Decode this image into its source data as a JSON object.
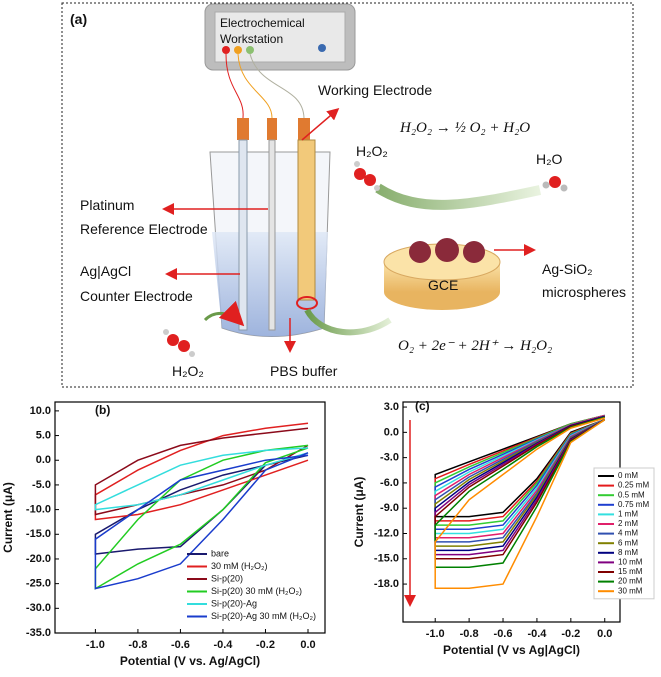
{
  "panel_a": {
    "panel_label": "(a)",
    "workstation": [
      "Electrochemical",
      "Workstation"
    ],
    "working_electrode": "Working Electrode",
    "equation_top": "H₂O₂ → ½ O₂ + H₂O",
    "h2o2_top": "H₂O₂",
    "h2o": "H₂O",
    "platinum": "Platinum",
    "reference_electrode": "Reference Electrode",
    "ag_agcl": "Ag|AgCl",
    "counter_electrode": "Counter Electrode",
    "ag_sio2": "Ag-SiO₂",
    "microspheres": "microspheres",
    "gce": "GCE",
    "equation_bottom": "O₂ + 2e⁻ + 2H⁺ → H₂O₂",
    "h2o2_bottom": "H₂O₂",
    "pbs_buffer": "PBS buffer"
  },
  "chart_data": [
    {
      "type": "line",
      "panel_label": "(b)",
      "xlabel": "Potential (V vs. Ag/AgCl)",
      "ylabel": "Current (μA)",
      "x": [
        0,
        -0.2,
        -0.4,
        -0.6,
        -0.8,
        -1.0,
        -1.0,
        -0.8,
        -0.6,
        -0.4,
        -0.2,
        0
      ],
      "xlim": [
        -1.19,
        0.08
      ],
      "ylim": [
        -35,
        11.8
      ],
      "xticks": [
        {
          "value": -1.0,
          "label": "-1.0"
        },
        -0.8,
        -0.6,
        -0.4,
        -0.2,
        {
          "value": 0,
          "label": "0.0"
        }
      ],
      "yticks": [
        {
          "value": 10,
          "label": "10.0"
        },
        {
          "value": 5,
          "label": "5.0"
        },
        {
          "value": 0,
          "label": "0.0"
        },
        {
          "value": -5,
          "label": "-5.0"
        },
        {
          "value": -10,
          "label": "-10.0"
        },
        {
          "value": -15,
          "label": "-15.0"
        },
        {
          "value": -20,
          "label": "-20.0"
        },
        {
          "value": -25,
          "label": "-25.0"
        },
        {
          "value": -30,
          "label": "-30.0"
        },
        {
          "value": -35,
          "label": "-35.0"
        }
      ],
      "legend": "lower right",
      "series": [
        {
          "name": "bare",
          "color": "#1a1a6e",
          "values": [
            1,
            -1,
            -10,
            -17.5,
            -18,
            -19,
            -15,
            -10,
            -6,
            -3,
            -1,
            1
          ]
        },
        {
          "name": "30 mM (H₂O₂)",
          "color": "#e02020",
          "values": [
            0,
            -3,
            -6,
            -9,
            -11,
            -12,
            -7,
            -2,
            2,
            5,
            6.5,
            7.5
          ]
        },
        {
          "name": "Si-p(20)",
          "color": "#8b0a1a",
          "values": [
            3,
            -2,
            -5,
            -7,
            -9,
            -11,
            -5,
            0,
            3,
            4.5,
            5.5,
            6.5
          ]
        },
        {
          "name": "Si-p(20) 30 mM (H₂O₂)",
          "color": "#22cc22",
          "values": [
            2.5,
            -0.5,
            -10,
            -17,
            -21,
            -26,
            -22,
            -12,
            -4,
            0,
            2,
            3
          ]
        },
        {
          "name": "Si-p(20)-Ag",
          "color": "#33dddd",
          "values": [
            1.5,
            -1,
            -4,
            -7,
            -9,
            -10,
            -9,
            -5,
            -1,
            1,
            2,
            2.5
          ]
        },
        {
          "name": "Si-p(20)-Ag 30 mM (H₂O₂)",
          "color": "#1a3ccc",
          "values": [
            1.5,
            -2,
            -12,
            -21,
            -24,
            -26,
            -16,
            -10,
            -4,
            -2,
            0,
            1
          ]
        }
      ]
    },
    {
      "type": "line",
      "panel_label": "(c)",
      "xlabel": "Potential (V vs Ag|AgCl)",
      "ylabel": "Current (μA)",
      "x": [
        0,
        -0.2,
        -0.4,
        -0.6,
        -0.8,
        -1.0,
        -1.0,
        -0.8,
        -0.6,
        -0.4,
        -0.2,
        0
      ],
      "xlim": [
        -1.19,
        0.09
      ],
      "ylim": [
        -22.5,
        3.6
      ],
      "xticks": [
        {
          "value": -1.0,
          "label": "-1.0"
        },
        -0.8,
        -0.6,
        -0.4,
        -0.2,
        {
          "value": 0,
          "label": "0.0"
        }
      ],
      "yticks": [
        {
          "value": 3,
          "label": "3.0"
        },
        {
          "value": 0,
          "label": "0.0"
        },
        {
          "value": -3,
          "label": "-3.0"
        },
        {
          "value": -6,
          "label": "-6.0"
        },
        {
          "value": -9,
          "label": "-9.0"
        },
        {
          "value": -12,
          "label": "-12.0"
        },
        {
          "value": -15,
          "label": "-15.0"
        },
        {
          "value": -18,
          "label": "-18.0"
        }
      ],
      "legend": "right",
      "series": [
        {
          "name": "0 mM",
          "color": "#000000",
          "values": [
            1.5,
            0,
            -5.5,
            -9.5,
            -10,
            -10,
            -5,
            -3.5,
            -2,
            -0.5,
            1,
            2
          ]
        },
        {
          "name": "0.25 mM",
          "color": "#e41a1c",
          "values": [
            1.5,
            -0.1,
            -5.8,
            -10,
            -10.5,
            -10.5,
            -5.5,
            -3.8,
            -2.2,
            -0.6,
            1,
            2
          ]
        },
        {
          "name": "0.5 mM",
          "color": "#33cc33",
          "values": [
            1.5,
            -0.2,
            -6,
            -10.5,
            -11,
            -11,
            -6,
            -4.1,
            -2.4,
            -0.7,
            1,
            2
          ]
        },
        {
          "name": "0.75 mM",
          "color": "#1f3fd0",
          "values": [
            1.5,
            -0.3,
            -6.3,
            -11,
            -11.5,
            -11.5,
            -6.5,
            -4.4,
            -2.6,
            -0.8,
            0.9,
            2
          ]
        },
        {
          "name": "1 mM",
          "color": "#33e0e0",
          "values": [
            1.5,
            -0.4,
            -6.6,
            -11.5,
            -12,
            -12,
            -7,
            -4.7,
            -2.8,
            -0.9,
            0.9,
            2
          ]
        },
        {
          "name": "2 mM",
          "color": "#e0206a",
          "values": [
            1.5,
            -0.5,
            -6.9,
            -12,
            -12.5,
            -12.5,
            -7.5,
            -5,
            -3,
            -1,
            0.9,
            2
          ]
        },
        {
          "name": "4 mM",
          "color": "#3050b0",
          "values": [
            1.5,
            -0.6,
            -7.2,
            -12.5,
            -13,
            -13,
            -8,
            -5.3,
            -3.2,
            -1.1,
            0.8,
            1.9
          ]
        },
        {
          "name": "6 mM",
          "color": "#808000",
          "values": [
            1.5,
            -0.7,
            -7.4,
            -13,
            -13.5,
            -13.5,
            -8.5,
            -5.6,
            -3.4,
            -1.2,
            0.8,
            1.9
          ]
        },
        {
          "name": "8 mM",
          "color": "#000080",
          "values": [
            1.5,
            -0.8,
            -7.7,
            -13.5,
            -14,
            -14,
            -9,
            -5.9,
            -3.6,
            -1.3,
            0.8,
            1.9
          ]
        },
        {
          "name": "10 mM",
          "color": "#800080",
          "values": [
            1.5,
            -0.9,
            -8,
            -14,
            -14.5,
            -14.5,
            -9.5,
            -6.2,
            -3.8,
            -1.4,
            0.7,
            1.8
          ]
        },
        {
          "name": "15 mM",
          "color": "#800000",
          "values": [
            1.5,
            -1,
            -8.3,
            -14.5,
            -15,
            -15,
            -10,
            -6.5,
            -4,
            -1.5,
            0.7,
            1.8
          ]
        },
        {
          "name": "20 mM",
          "color": "#008000",
          "values": [
            1.5,
            -1.1,
            -8.8,
            -15.5,
            -16,
            -16,
            -11,
            -7,
            -4.4,
            -1.7,
            0.6,
            1.8
          ]
        },
        {
          "name": "30 mM",
          "color": "#ff8c00",
          "values": [
            1.5,
            -1.2,
            -10,
            -18,
            -18.5,
            -18.5,
            -13,
            -8,
            -5,
            -2,
            0.5,
            1.7
          ]
        }
      ]
    }
  ]
}
